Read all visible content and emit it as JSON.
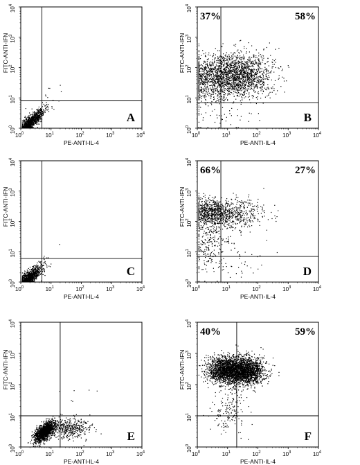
{
  "chart_data": [
    {
      "panel": "A",
      "type": "scatter",
      "xlabel": "PE-ANTI-IL-4",
      "ylabel": "FITC-ANTI-IFN",
      "x_scale": "log",
      "y_scale": "log",
      "xlim": [
        1,
        10000
      ],
      "ylim": [
        1,
        10000
      ],
      "x_ticks": [
        "10^0",
        "10^1",
        "10^2",
        "10^3",
        "10^4"
      ],
      "y_ticks": [
        "10^0",
        "10^1",
        "10^2",
        "10^3",
        "10^4"
      ],
      "quadrant_gate": {
        "x": 5,
        "y": 8
      },
      "quadrant_labels": [],
      "populations": [
        {
          "cx": 1.8,
          "cy": 1.4,
          "sx": 0.22,
          "sy": 0.22,
          "n": 1300,
          "corr": 0.85
        },
        {
          "cx": 6,
          "cy": 6,
          "sx": 0.25,
          "sy": 0.25,
          "n": 12
        },
        {
          "cx": 14,
          "cy": 18,
          "sx": 0.15,
          "sy": 0.15,
          "n": 4
        }
      ]
    },
    {
      "panel": "B",
      "type": "scatter",
      "xlabel": "PE-ANTI-IL-4",
      "ylabel": "FITC-ANTI-IFN",
      "x_scale": "log",
      "y_scale": "log",
      "xlim": [
        1,
        10000
      ],
      "ylim": [
        1,
        10000
      ],
      "x_ticks": [
        "10^0",
        "10^1",
        "10^2",
        "10^3",
        "10^4"
      ],
      "y_ticks": [
        "10^0",
        "10^1",
        "10^2",
        "10^3",
        "10^4"
      ],
      "quadrant_gate": {
        "x": 6,
        "y": 7
      },
      "quadrant_labels": [
        {
          "text": "37%",
          "position": "top-left"
        },
        {
          "text": "58%",
          "position": "top-right"
        }
      ],
      "populations": [
        {
          "cx": 3,
          "cy": 45,
          "sx": 0.5,
          "sy": 0.38,
          "n": 900
        },
        {
          "cx": 25,
          "cy": 60,
          "sx": 0.55,
          "sy": 0.35,
          "n": 1400
        },
        {
          "cx": 4,
          "cy": 3,
          "sx": 0.5,
          "sy": 0.4,
          "n": 60
        }
      ]
    },
    {
      "panel": "C",
      "type": "scatter",
      "xlabel": "PE-ANTI-IL-4",
      "ylabel": "FITC-ANTI-IFN",
      "x_scale": "log",
      "y_scale": "log",
      "xlim": [
        1,
        10000
      ],
      "ylim": [
        1,
        10000
      ],
      "x_ticks": [
        "10^0",
        "10^1",
        "10^2",
        "10^3",
        "10^4"
      ],
      "y_ticks": [
        "10^0",
        "10^1",
        "10^2",
        "10^3",
        "10^4"
      ],
      "quadrant_gate": {
        "x": 5,
        "y": 6
      },
      "quadrant_labels": [],
      "populations": [
        {
          "cx": 1.8,
          "cy": 1.4,
          "sx": 0.22,
          "sy": 0.2,
          "n": 1100,
          "corr": 0.8
        },
        {
          "cx": 5,
          "cy": 5,
          "sx": 0.2,
          "sy": 0.2,
          "n": 10
        },
        {
          "cx": 15,
          "cy": 15,
          "sx": 0.05,
          "sy": 0.05,
          "n": 1
        }
      ]
    },
    {
      "panel": "D",
      "type": "scatter",
      "xlabel": "PE-ANTI-IL-4",
      "ylabel": "FITC-ANTI-IFN",
      "x_scale": "log",
      "y_scale": "log",
      "xlim": [
        1,
        10000
      ],
      "ylim": [
        1,
        10000
      ],
      "x_ticks": [
        "10^0",
        "10^1",
        "10^2",
        "10^3",
        "10^4"
      ],
      "y_ticks": [
        "10^0",
        "10^1",
        "10^2",
        "10^3",
        "10^4"
      ],
      "quadrant_gate": {
        "x": 6,
        "y": 7
      },
      "quadrant_labels": [
        {
          "text": "66%",
          "position": "top-left"
        },
        {
          "text": "27%",
          "position": "top-right"
        }
      ],
      "populations": [
        {
          "cx": 2.5,
          "cy": 200,
          "sx": 0.35,
          "sy": 0.22,
          "n": 700
        },
        {
          "cx": 18,
          "cy": 190,
          "sx": 0.5,
          "sy": 0.25,
          "n": 420
        },
        {
          "cx": 2.2,
          "cy": 20,
          "sx": 0.3,
          "sy": 0.45,
          "n": 230
        },
        {
          "cx": 15,
          "cy": 8,
          "sx": 0.5,
          "sy": 0.4,
          "n": 60
        }
      ]
    },
    {
      "panel": "E",
      "type": "scatter",
      "xlabel": "PE-ANTI-IL-4",
      "ylabel": "FITC-ANTI-IFN",
      "x_scale": "log",
      "y_scale": "log",
      "xlim": [
        1,
        10000
      ],
      "ylim": [
        1,
        10000
      ],
      "x_ticks": [
        "10^0",
        "10^1",
        "10^2",
        "10^3",
        "10^4"
      ],
      "y_ticks": [
        "10^0",
        "10^1",
        "10^2",
        "10^3",
        "10^4"
      ],
      "quadrant_gate": {
        "x": 20,
        "y": 10
      },
      "quadrant_labels": [],
      "populations": [
        {
          "cx": 6,
          "cy": 3.2,
          "sx": 0.17,
          "sy": 0.16,
          "n": 1500,
          "corr": 0.6
        },
        {
          "cx": 40,
          "cy": 4,
          "sx": 0.35,
          "sy": 0.17,
          "n": 400
        },
        {
          "cx": 100,
          "cy": 60,
          "sx": 0.4,
          "sy": 0.35,
          "n": 6
        }
      ]
    },
    {
      "panel": "F",
      "type": "scatter",
      "xlabel": "PE-ANTI-IL-4",
      "ylabel": "FITC-ANTI-IFN",
      "x_scale": "log",
      "y_scale": "log",
      "xlim": [
        1,
        10000
      ],
      "ylim": [
        1,
        10000
      ],
      "x_ticks": [
        "10^0",
        "10^1",
        "10^2",
        "10^3",
        "10^4"
      ],
      "y_ticks": [
        "10^0",
        "10^1",
        "10^2",
        "10^3",
        "10^4"
      ],
      "quadrant_gate": {
        "x": 20,
        "y": 10
      },
      "quadrant_labels": [
        {
          "text": "40%",
          "position": "top-left"
        },
        {
          "text": "59%",
          "position": "top-right"
        }
      ],
      "populations": [
        {
          "cx": 9,
          "cy": 300,
          "sx": 0.3,
          "sy": 0.22,
          "n": 1700
        },
        {
          "cx": 40,
          "cy": 280,
          "sx": 0.3,
          "sy": 0.22,
          "n": 1700
        },
        {
          "cx": 12,
          "cy": 15,
          "sx": 0.3,
          "sy": 0.35,
          "n": 150
        }
      ]
    }
  ]
}
